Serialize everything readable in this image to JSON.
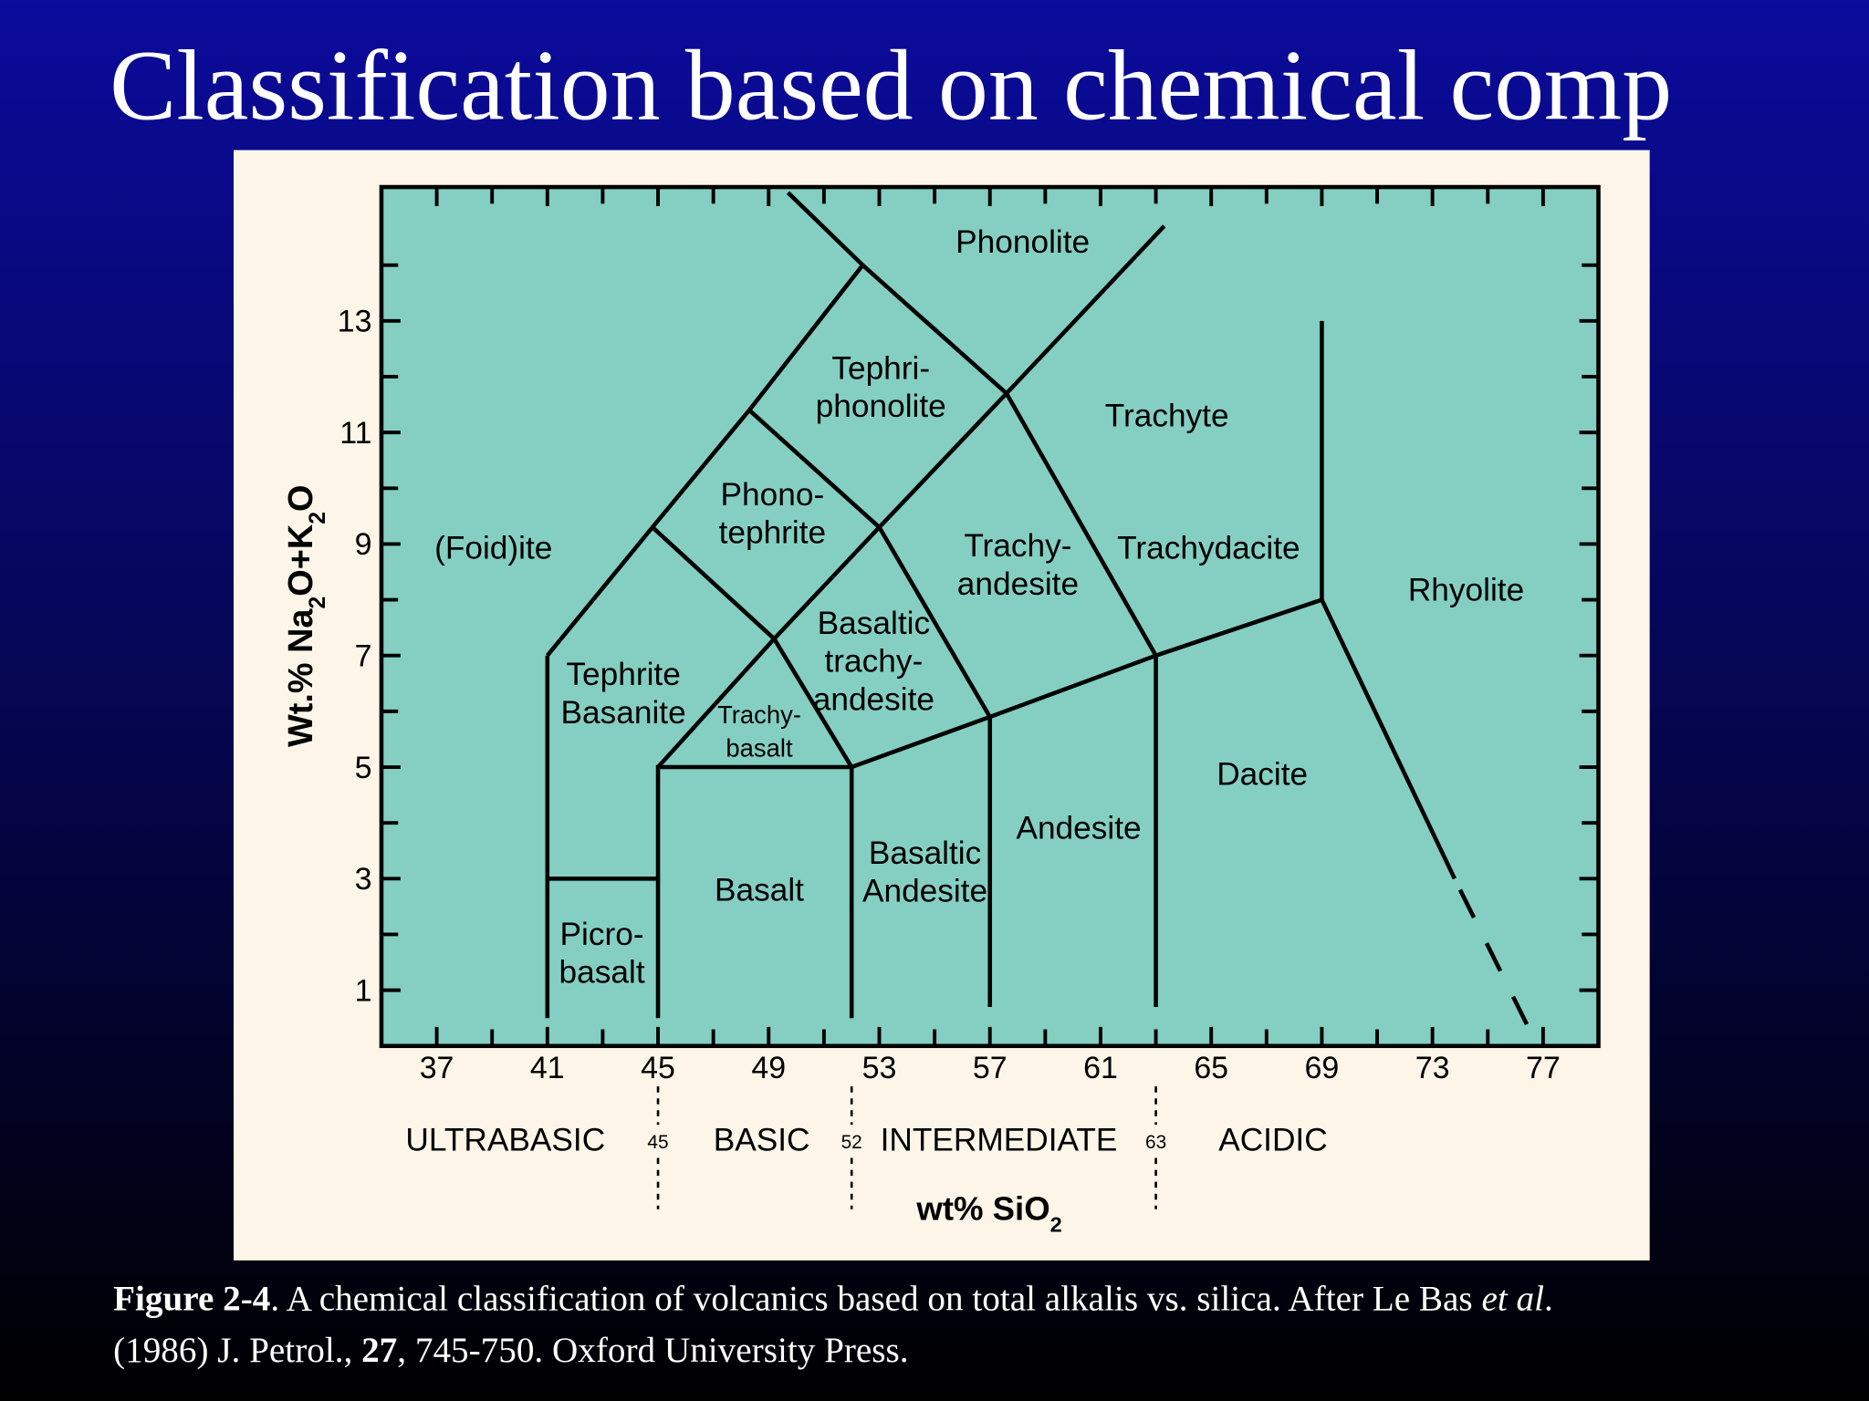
{
  "title": "Classification based on chemical comp",
  "caption": {
    "lines": [
      [
        {
          "text": "Figure 2-4",
          "style": "bold"
        },
        {
          "text": ". A chemical classification of volcanics based on total alkalis vs. silica. After Le Bas "
        },
        {
          "text": "et al",
          "style": "italic"
        },
        {
          "text": "."
        }
      ],
      [
        {
          "text": "(1986) J. Petrol., "
        },
        {
          "text": "27",
          "style": "bold"
        },
        {
          "text": ", 745-750. Oxford University Press."
        }
      ]
    ]
  },
  "chart_data": {
    "type": "line",
    "x_label": [
      "wt% SiO",
      "2"
    ],
    "y_label": [
      "Wt.% Na",
      "2",
      "O+K",
      "2",
      "O"
    ],
    "xlim": [
      35,
      79
    ],
    "ylim": [
      0,
      15.4
    ],
    "xticks": [
      37,
      41,
      45,
      49,
      53,
      57,
      61,
      65,
      69,
      73,
      77
    ],
    "xticks_minor": [
      39,
      43,
      47,
      51,
      55,
      59,
      63,
      67,
      71,
      75
    ],
    "yticks": [
      1,
      3,
      5,
      7,
      9,
      11,
      13
    ],
    "yticks_minor": [
      2,
      4,
      6,
      8,
      10,
      12,
      14
    ],
    "plot_color": "#84cfc2",
    "boundaries": [
      {
        "x": [
          41,
          44.8,
          48.3,
          52.4,
          49.7
        ],
        "y": [
          7,
          9.3,
          11.4,
          14,
          15.3
        ]
      },
      {
        "x": [
          44.8,
          49.2,
          52
        ],
        "y": [
          9.3,
          7.3,
          5
        ]
      },
      {
        "x": [
          45,
          49.2,
          53,
          57.6,
          63.3
        ],
        "y": [
          5,
          7.3,
          9.3,
          11.7,
          14.7
        ]
      },
      {
        "x": [
          48.3,
          53,
          57
        ],
        "y": [
          11.4,
          9.3,
          5.9
        ]
      },
      {
        "x": [
          52.4,
          57.6,
          63
        ],
        "y": [
          14,
          11.7,
          7
        ]
      },
      {
        "x": [
          41,
          41
        ],
        "y": [
          0.5,
          7
        ]
      },
      {
        "x": [
          41,
          45
        ],
        "y": [
          3,
          3
        ]
      },
      {
        "x": [
          45,
          45,
          52
        ],
        "y": [
          0.5,
          5,
          5
        ]
      },
      {
        "x": [
          52,
          52,
          57,
          63,
          69,
          69
        ],
        "y": [
          0.5,
          5,
          5.9,
          7,
          8,
          13
        ]
      },
      {
        "x": [
          57,
          57
        ],
        "y": [
          0.7,
          5.9
        ]
      },
      {
        "x": [
          63,
          63
        ],
        "y": [
          0.7,
          7
        ]
      },
      {
        "x": [
          69,
          73.8
        ],
        "y": [
          8,
          3
        ]
      },
      {
        "x": [
          74,
          76.6
        ],
        "y": [
          2.8,
          0.2
        ],
        "dashed": true
      }
    ],
    "fields": [
      {
        "lines": [
          "Phonolite"
        ]
      },
      {
        "lines": [
          "Tephri-",
          "phonolite"
        ]
      },
      {
        "lines": [
          "Trachyte"
        ]
      },
      {
        "lines": [
          "Phono-",
          "tephrite"
        ]
      },
      {
        "lines": [
          "(Foid)ite"
        ]
      },
      {
        "lines": [
          "Trachy-",
          "andesite"
        ]
      },
      {
        "lines": [
          "Trachydacite"
        ]
      },
      {
        "lines": [
          "Rhyolite"
        ]
      },
      {
        "lines": [
          "Basaltic",
          "trachy-",
          "andesite"
        ]
      },
      {
        "lines": [
          "Tephrite",
          "Basanite"
        ]
      },
      {
        "lines": [
          "Trachy-",
          "basalt"
        ]
      },
      {
        "lines": [
          "Dacite"
        ]
      },
      {
        "lines": [
          "Andesite"
        ]
      },
      {
        "lines": [
          "Basaltic",
          "Andesite"
        ]
      },
      {
        "lines": [
          "Basalt"
        ]
      },
      {
        "lines": [
          "Picro-",
          "basalt"
        ]
      }
    ],
    "silica_classes": [
      "ULTRABASIC",
      "BASIC",
      "INTERMEDIATE",
      "ACIDIC"
    ],
    "class_bounds": [
      45,
      52,
      63
    ]
  }
}
